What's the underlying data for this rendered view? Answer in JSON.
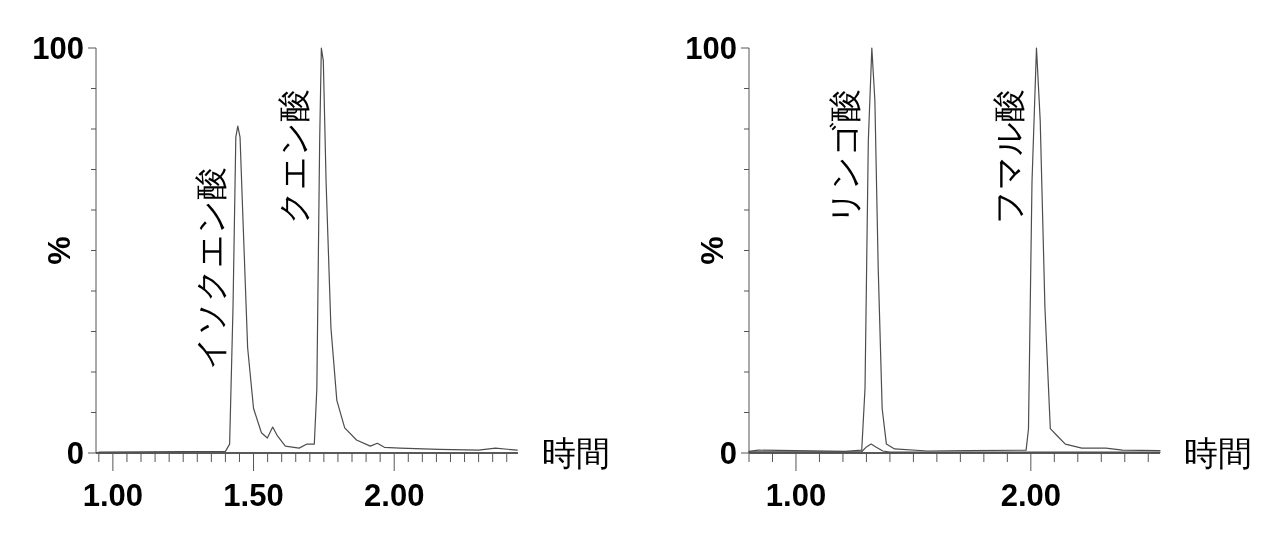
{
  "chart_data": [
    {
      "type": "line",
      "xlabel": "時間",
      "ylabel": "%",
      "xlim": [
        0.94,
        2.44
      ],
      "ylim": [
        0,
        100
      ],
      "grid": false,
      "xticks": [
        {
          "value": 0.95,
          "label": null
        },
        {
          "value": 1.0,
          "label": "1.00"
        },
        {
          "value": 1.05,
          "label": null
        },
        {
          "value": 1.1,
          "label": null
        },
        {
          "value": 1.15,
          "label": null
        },
        {
          "value": 1.2,
          "label": null
        },
        {
          "value": 1.25,
          "label": null
        },
        {
          "value": 1.3,
          "label": null
        },
        {
          "value": 1.35,
          "label": null
        },
        {
          "value": 1.4,
          "label": null
        },
        {
          "value": 1.45,
          "label": null
        },
        {
          "value": 1.5,
          "label": "1.50"
        },
        {
          "value": 1.55,
          "label": null
        },
        {
          "value": 1.6,
          "label": null
        },
        {
          "value": 1.65,
          "label": null
        },
        {
          "value": 1.7,
          "label": null
        },
        {
          "value": 1.75,
          "label": null
        },
        {
          "value": 1.8,
          "label": null
        },
        {
          "value": 1.85,
          "label": null
        },
        {
          "value": 1.9,
          "label": null
        },
        {
          "value": 1.95,
          "label": null
        },
        {
          "value": 2.0,
          "label": "2.00"
        },
        {
          "value": 2.05,
          "label": null
        },
        {
          "value": 2.1,
          "label": null
        },
        {
          "value": 2.15,
          "label": null
        },
        {
          "value": 2.2,
          "label": null
        },
        {
          "value": 2.25,
          "label": null
        },
        {
          "value": 2.3,
          "label": null
        },
        {
          "value": 2.35,
          "label": null
        },
        {
          "value": 2.4,
          "label": null
        }
      ],
      "yticks": [
        {
          "value": 0,
          "label": "0"
        },
        {
          "value": 10,
          "label": null
        },
        {
          "value": 20,
          "label": null
        },
        {
          "value": 30,
          "label": null
        },
        {
          "value": 40,
          "label": null
        },
        {
          "value": 50,
          "label": null
        },
        {
          "value": 60,
          "label": null
        },
        {
          "value": 70,
          "label": null
        },
        {
          "value": 80,
          "label": null
        },
        {
          "value": 90,
          "label": null
        },
        {
          "value": 100,
          "label": "100"
        }
      ],
      "series": [
        {
          "color": "#4d4d4d",
          "x": [
            0.95,
            1.4,
            1.415,
            1.427,
            1.437,
            1.444,
            1.452,
            1.463,
            1.479,
            1.5,
            1.528,
            1.549,
            1.568,
            1.585,
            1.613,
            1.662,
            1.69,
            1.716,
            1.725,
            1.735,
            1.741,
            1.748,
            1.758,
            1.775,
            1.796,
            1.824,
            1.866,
            1.915,
            1.94,
            1.965,
            2.02,
            2.16,
            2.3,
            2.36,
            2.437
          ],
          "values": [
            0.2,
            0.4,
            2.2,
            36,
            78,
            80.7,
            78,
            56.5,
            26,
            11,
            5,
            3.7,
            6.4,
            4.2,
            1.7,
            1.2,
            2.2,
            2.2,
            16,
            77,
            100,
            96.8,
            66.6,
            31,
            13,
            6.2,
            3.2,
            1.7,
            2.4,
            1.4,
            1.2,
            0.9,
            0.7,
            1.2,
            0.7
          ]
        }
      ],
      "annotations": [
        {
          "text": "イソクエン酸",
          "x": 1.444,
          "y": 80.7
        },
        {
          "text": "クエン酸",
          "x": 1.741,
          "y": 100
        }
      ]
    },
    {
      "type": "line",
      "xlabel": "時間",
      "ylabel": "%",
      "xlim": [
        0.8,
        2.55
      ],
      "ylim": [
        0,
        100
      ],
      "grid": false,
      "xticks": [
        {
          "value": 0.8,
          "label": null
        },
        {
          "value": 0.9,
          "label": null
        },
        {
          "value": 1.0,
          "label": "1.00"
        },
        {
          "value": 1.1,
          "label": null
        },
        {
          "value": 1.2,
          "label": null
        },
        {
          "value": 1.3,
          "label": null
        },
        {
          "value": 1.4,
          "label": null
        },
        {
          "value": 1.5,
          "label": null
        },
        {
          "value": 1.6,
          "label": null
        },
        {
          "value": 1.7,
          "label": null
        },
        {
          "value": 1.8,
          "label": null
        },
        {
          "value": 1.9,
          "label": null
        },
        {
          "value": 2.0,
          "label": "2.00"
        },
        {
          "value": 2.1,
          "label": null
        },
        {
          "value": 2.2,
          "label": null
        },
        {
          "value": 2.3,
          "label": null
        },
        {
          "value": 2.4,
          "label": null
        },
        {
          "value": 2.5,
          "label": null
        }
      ],
      "yticks": [
        {
          "value": 0,
          "label": "0"
        },
        {
          "value": 10,
          "label": null
        },
        {
          "value": 20,
          "label": null
        },
        {
          "value": 30,
          "label": null
        },
        {
          "value": 40,
          "label": null
        },
        {
          "value": 50,
          "label": null
        },
        {
          "value": 60,
          "label": null
        },
        {
          "value": 70,
          "label": null
        },
        {
          "value": 80,
          "label": null
        },
        {
          "value": 90,
          "label": null
        },
        {
          "value": 100,
          "label": "100"
        }
      ],
      "series": [
        {
          "color": "#4d4d4d",
          "x": [
            0.8,
            0.84,
            1.21,
            1.28,
            1.294,
            1.308,
            1.323,
            1.336,
            1.35,
            1.367,
            1.385,
            1.42,
            1.56,
            1.73,
            1.98,
            1.99,
            2.005,
            2.024,
            2.04,
            2.06,
            2.083,
            2.113,
            2.147,
            2.217,
            2.32,
            2.39,
            2.55
          ],
          "values": [
            0.4,
            0.7,
            0.4,
            0.7,
            16,
            77,
            100,
            87,
            46,
            11,
            2.2,
            1,
            0.5,
            0.6,
            0.7,
            6,
            67,
            100,
            82,
            36,
            6,
            4.2,
            2.2,
            1.2,
            1.2,
            0.7,
            0.6
          ]
        },
        {
          "color": "#4d4d4d",
          "x": [
            0.8,
            1.28,
            1.3,
            1.32,
            1.34,
            1.37,
            1.4,
            1.6,
            2.0,
            2.55
          ],
          "values": [
            0.3,
            0.3,
            1.5,
            2.2,
            1.5,
            0.5,
            0.2,
            0.2,
            0.2,
            0.2
          ]
        }
      ],
      "annotations": [
        {
          "text": "リンゴ酸",
          "x": 1.323,
          "y": 100
        },
        {
          "text": "フマル酸",
          "x": 2.024,
          "y": 100
        }
      ]
    }
  ]
}
